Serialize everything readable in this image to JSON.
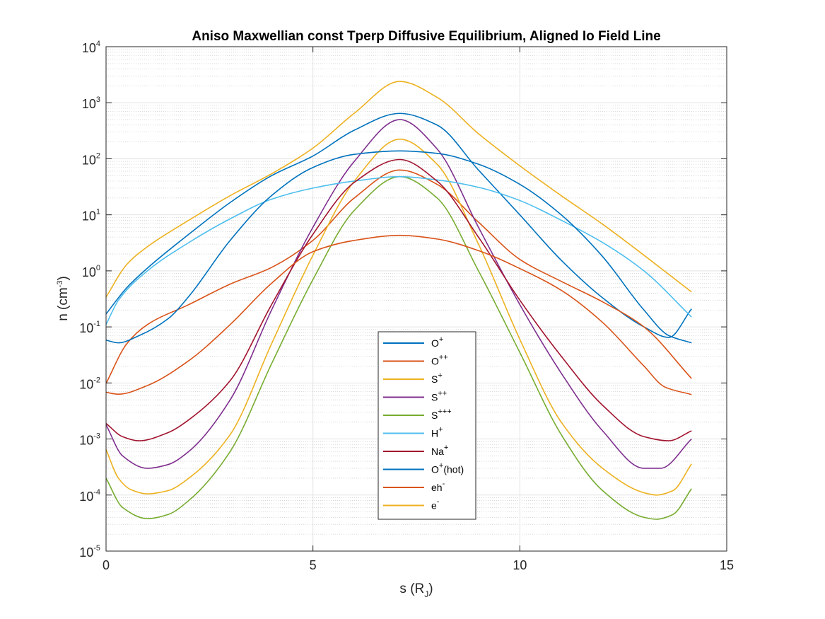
{
  "chart_data": {
    "type": "line",
    "title": "Aniso Maxwellian const Tperp Diffusive Equilibrium, Aligned Io Field Line",
    "xlabel": {
      "base": "s (R",
      "sub": "J",
      "end": ")"
    },
    "ylabel": {
      "base": "n (cm",
      "sup": "-3",
      "end": ")"
    },
    "xlim": [
      0,
      15
    ],
    "ylim": [
      1e-05,
      10000.0
    ],
    "yscale": "log",
    "grid": true,
    "minor_grid": true,
    "legend_position": "bottom-center",
    "x_ticks": [
      {
        "value": 0,
        "label": "0"
      },
      {
        "value": 5,
        "label": "5"
      },
      {
        "value": 10,
        "label": "10"
      },
      {
        "value": 15,
        "label": "15"
      }
    ],
    "y_ticks": [
      {
        "value": 1e-05,
        "base": "10",
        "exp": "-5"
      },
      {
        "value": 0.0001,
        "base": "10",
        "exp": "-4"
      },
      {
        "value": 0.001,
        "base": "10",
        "exp": "-3"
      },
      {
        "value": 0.01,
        "base": "10",
        "exp": "-2"
      },
      {
        "value": 0.1,
        "base": "10",
        "exp": "-1"
      },
      {
        "value": 1.0,
        "base": "10",
        "exp": "0"
      },
      {
        "value": 10.0,
        "base": "10",
        "exp": "1"
      },
      {
        "value": 100.0,
        "base": "10",
        "exp": "2"
      },
      {
        "value": 1000.0,
        "base": "10",
        "exp": "3"
      },
      {
        "value": 10000.0,
        "base": "10",
        "exp": "4"
      }
    ],
    "series": [
      {
        "base": "O",
        "sup": "+",
        "tail": "",
        "color": "#0072BD",
        "x": [
          0,
          0.5,
          1,
          2,
          3,
          4,
          5,
          6,
          7.1,
          8,
          9,
          10,
          11,
          12,
          13,
          13.6,
          14.15
        ],
        "y": [
          0.17,
          0.5,
          1.12,
          4.5,
          16.6,
          50,
          112,
          324,
          646,
          400,
          63,
          10,
          1.55,
          0.33,
          0.1,
          0.065,
          0.21
        ]
      },
      {
        "base": "O",
        "sup": "++",
        "tail": "",
        "color": "#D95319",
        "x": [
          0,
          0.5,
          1,
          2,
          3,
          4,
          5,
          6,
          7.1,
          8,
          9,
          10,
          11,
          12,
          13,
          14.15
        ],
        "y": [
          0.0098,
          0.05,
          0.11,
          0.25,
          0.58,
          1.15,
          3.5,
          20,
          63,
          35,
          7.4,
          1.6,
          0.65,
          0.28,
          0.1,
          0.012
        ]
      },
      {
        "base": "S",
        "sup": "+",
        "tail": "",
        "color": "#EDB120",
        "x": [
          0,
          0.3,
          0.6,
          1,
          1.5,
          2,
          3,
          4,
          5,
          6,
          7.1,
          8,
          9,
          10,
          11,
          12,
          13,
          13.3,
          13.7,
          14.15
        ],
        "y": [
          0.00065,
          0.0002,
          0.000125,
          0.000105,
          0.00012,
          0.0002,
          0.0012,
          0.05,
          1.9,
          40,
          224,
          80,
          3,
          0.06,
          0.002,
          0.0003,
          0.00011,
          0.0001,
          0.00012,
          0.00036
        ]
      },
      {
        "base": "S",
        "sup": "++",
        "tail": "",
        "color": "#7E2F8E",
        "x": [
          0,
          0.4,
          1,
          1.5,
          2,
          3,
          4,
          5,
          6,
          7.1,
          8,
          9,
          10,
          11,
          12,
          13,
          13.4,
          14.15
        ],
        "y": [
          0.0018,
          0.0005,
          0.0003,
          0.00035,
          0.0006,
          0.005,
          0.2,
          6,
          90,
          500,
          150,
          6,
          0.25,
          0.015,
          0.0014,
          0.0003,
          0.0003,
          0.001
        ]
      },
      {
        "base": "S",
        "sup": "+++",
        "tail": "",
        "color": "#77AC30",
        "x": [
          0,
          0.4,
          1,
          1.5,
          2,
          3,
          4,
          5,
          6,
          7.1,
          8,
          9,
          10,
          11,
          12,
          13,
          13.3,
          13.7,
          14.15
        ],
        "y": [
          0.0002,
          6e-05,
          3.8e-05,
          4.5e-05,
          8e-05,
          0.0006,
          0.022,
          0.7,
          12,
          48,
          20,
          1,
          0.035,
          0.0012,
          0.00012,
          4e-05,
          3.7e-05,
          4.5e-05,
          0.00013
        ]
      },
      {
        "base": "H",
        "sup": "+",
        "tail": "",
        "color": "#4DBEEE",
        "x": [
          0,
          0.3,
          1,
          2,
          3,
          4,
          5,
          6,
          7.1,
          8,
          9,
          10,
          11,
          12,
          13,
          14.15
        ],
        "y": [
          0.11,
          0.3,
          1.0,
          3.2,
          8.5,
          19,
          30,
          40,
          48,
          42,
          31,
          18,
          8,
          3.2,
          1.0,
          0.15
        ]
      },
      {
        "base": "Na",
        "sup": "+",
        "tail": "",
        "color": "#A2142F",
        "x": [
          0,
          0.4,
          0.8,
          1.5,
          2,
          3,
          4,
          5,
          6,
          7.1,
          8,
          9,
          10,
          11,
          12,
          13,
          13.6,
          14.15
        ],
        "y": [
          0.0019,
          0.0011,
          0.00093,
          0.0013,
          0.0022,
          0.011,
          0.25,
          4.5,
          38,
          97,
          40,
          4,
          0.3,
          0.03,
          0.004,
          0.0011,
          0.00093,
          0.0014
        ]
      },
      {
        "base": "O",
        "sup": "+",
        "tail": "(hot)",
        "color": "#0072BD",
        "x": [
          0,
          0.3,
          0.8,
          1.5,
          2,
          3,
          4,
          5,
          6,
          7.1,
          8,
          9,
          10,
          11,
          12,
          13,
          13.6,
          14.15
        ],
        "y": [
          0.058,
          0.052,
          0.07,
          0.14,
          0.35,
          3.5,
          22,
          70,
          120,
          138,
          125,
          80,
          35,
          10,
          1.8,
          0.2,
          0.07,
          0.052
        ]
      },
      {
        "base": "eh",
        "sup": "-",
        "tail": "",
        "color": "#D95319",
        "x": [
          0,
          0.3,
          1,
          2,
          3,
          4,
          5,
          6,
          7.1,
          8,
          9,
          10,
          11,
          12,
          13,
          13.5,
          14.15
        ],
        "y": [
          0.0068,
          0.0063,
          0.009,
          0.025,
          0.11,
          0.6,
          2.2,
          3.5,
          4.3,
          3.7,
          2.3,
          1.1,
          0.45,
          0.12,
          0.02,
          0.0085,
          0.0062
        ]
      },
      {
        "base": "e",
        "sup": "-",
        "tail": "",
        "color": "#EDB120",
        "x": [
          0,
          0.5,
          1,
          2,
          3,
          4,
          5,
          6,
          7.1,
          8,
          9,
          10,
          11,
          12,
          13,
          14.15
        ],
        "y": [
          0.34,
          1.3,
          2.7,
          8,
          22,
          54,
          155,
          650,
          2400,
          1250,
          280,
          75,
          22,
          6.8,
          1.9,
          0.42
        ]
      }
    ]
  }
}
